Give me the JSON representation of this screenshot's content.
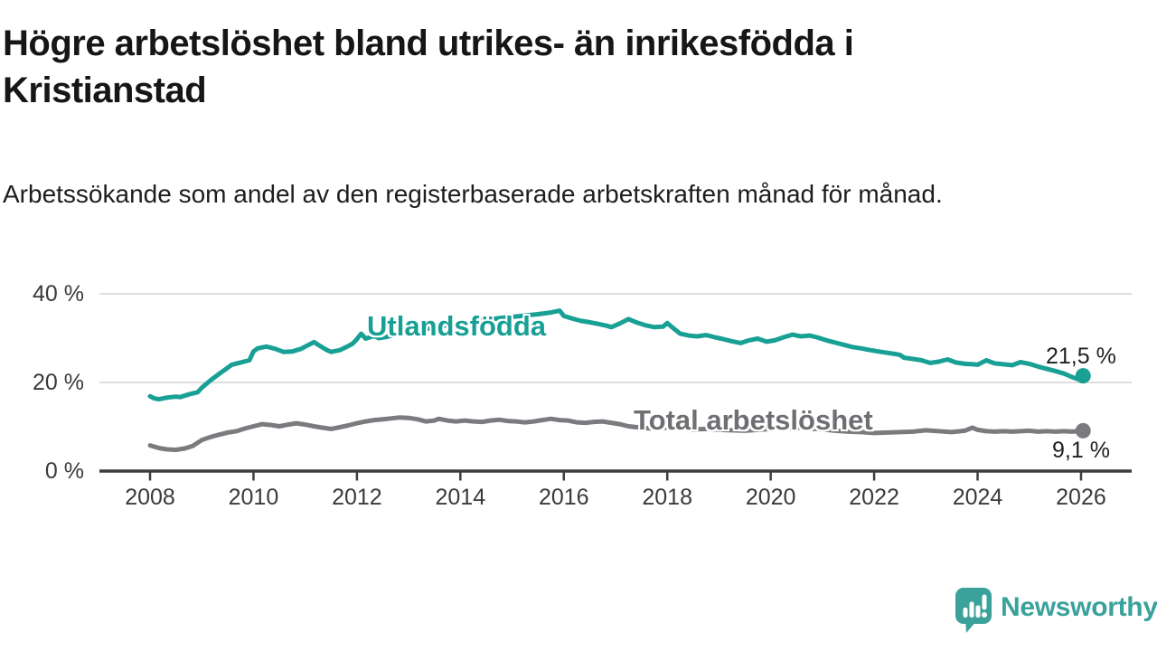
{
  "chart_data": {
    "type": "line",
    "title": "Högre arbetslöshet bland utrikes- än inrikesfödda i Kristianstad",
    "subtitle": "Arbetssökande som andel av den registerbaserade arbetskraften månad för månad.",
    "unit": "%",
    "grid": "horizontal",
    "legend_position": "inline-on-line",
    "x_axis": {
      "tick_labels": [
        "2008",
        "2010",
        "2012",
        "2014",
        "2016",
        "2018",
        "2020",
        "2022",
        "2024",
        "2026"
      ],
      "tick_years": [
        2008,
        2010,
        2012,
        2014,
        2016,
        2018,
        2020,
        2022,
        2024,
        2026
      ],
      "range": [
        2008,
        2026.3
      ]
    },
    "y_axis": {
      "tick_labels": [
        "0 %",
        "20 %",
        "40 %"
      ],
      "tick_values": [
        0,
        20,
        40
      ],
      "ylim": [
        0,
        42
      ]
    },
    "series": [
      {
        "id": "utlandsfodda",
        "name": "Utlandsfödda",
        "color": "#18a095",
        "end_label": "21,5 %",
        "end_value": 21.5,
        "points": [
          [
            2008.0,
            16.9
          ],
          [
            2008.08,
            16.4
          ],
          [
            2008.17,
            16.2
          ],
          [
            2008.33,
            16.6
          ],
          [
            2008.5,
            16.8
          ],
          [
            2008.58,
            16.7
          ],
          [
            2008.75,
            17.3
          ],
          [
            2008.92,
            17.8
          ],
          [
            2009.0,
            18.8
          ],
          [
            2009.17,
            20.5
          ],
          [
            2009.33,
            21.9
          ],
          [
            2009.5,
            23.3
          ],
          [
            2009.58,
            24.0
          ],
          [
            2009.75,
            24.5
          ],
          [
            2009.92,
            25.0
          ],
          [
            2010.0,
            27.0
          ],
          [
            2010.08,
            27.7
          ],
          [
            2010.25,
            28.1
          ],
          [
            2010.42,
            27.6
          ],
          [
            2010.58,
            26.9
          ],
          [
            2010.75,
            27.0
          ],
          [
            2010.92,
            27.6
          ],
          [
            2011.0,
            28.1
          ],
          [
            2011.17,
            29.1
          ],
          [
            2011.25,
            28.5
          ],
          [
            2011.42,
            27.3
          ],
          [
            2011.5,
            26.9
          ],
          [
            2011.67,
            27.3
          ],
          [
            2011.83,
            28.2
          ],
          [
            2011.92,
            28.8
          ],
          [
            2012.0,
            29.8
          ],
          [
            2012.08,
            31.0
          ],
          [
            2012.17,
            29.9
          ],
          [
            2012.25,
            30.2
          ],
          [
            2012.33,
            30.5
          ],
          [
            2012.42,
            30.0
          ],
          [
            2012.58,
            30.3
          ],
          [
            2012.75,
            30.8
          ],
          [
            2013.0,
            31.4
          ],
          [
            2013.25,
            31.9
          ],
          [
            2013.5,
            32.4
          ],
          [
            2013.75,
            32.9
          ],
          [
            2014.0,
            33.3
          ],
          [
            2014.25,
            33.7
          ],
          [
            2014.5,
            34.1
          ],
          [
            2014.75,
            34.5
          ],
          [
            2015.0,
            34.8
          ],
          [
            2015.25,
            35.1
          ],
          [
            2015.5,
            35.4
          ],
          [
            2015.75,
            35.8
          ],
          [
            2015.92,
            36.2
          ],
          [
            2016.0,
            35.0
          ],
          [
            2016.17,
            34.4
          ],
          [
            2016.33,
            33.9
          ],
          [
            2016.5,
            33.6
          ],
          [
            2016.67,
            33.2
          ],
          [
            2016.83,
            32.8
          ],
          [
            2016.92,
            32.5
          ],
          [
            2017.08,
            33.3
          ],
          [
            2017.25,
            34.3
          ],
          [
            2017.42,
            33.5
          ],
          [
            2017.58,
            32.9
          ],
          [
            2017.75,
            32.5
          ],
          [
            2017.92,
            32.6
          ],
          [
            2018.0,
            33.4
          ],
          [
            2018.08,
            32.6
          ],
          [
            2018.25,
            31.0
          ],
          [
            2018.42,
            30.6
          ],
          [
            2018.58,
            30.4
          ],
          [
            2018.75,
            30.7
          ],
          [
            2018.92,
            30.2
          ],
          [
            2019.08,
            29.8
          ],
          [
            2019.25,
            29.3
          ],
          [
            2019.42,
            28.9
          ],
          [
            2019.58,
            29.5
          ],
          [
            2019.75,
            29.9
          ],
          [
            2019.92,
            29.2
          ],
          [
            2020.08,
            29.5
          ],
          [
            2020.25,
            30.2
          ],
          [
            2020.42,
            30.8
          ],
          [
            2020.58,
            30.4
          ],
          [
            2020.75,
            30.6
          ],
          [
            2020.92,
            30.1
          ],
          [
            2021.08,
            29.5
          ],
          [
            2021.25,
            29.0
          ],
          [
            2021.42,
            28.5
          ],
          [
            2021.58,
            28.0
          ],
          [
            2021.75,
            27.7
          ],
          [
            2021.92,
            27.3
          ],
          [
            2022.08,
            27.0
          ],
          [
            2022.25,
            26.7
          ],
          [
            2022.42,
            26.4
          ],
          [
            2022.5,
            26.2
          ],
          [
            2022.58,
            25.6
          ],
          [
            2022.75,
            25.3
          ],
          [
            2022.92,
            25.0
          ],
          [
            2023.08,
            24.4
          ],
          [
            2023.25,
            24.7
          ],
          [
            2023.42,
            25.2
          ],
          [
            2023.58,
            24.5
          ],
          [
            2023.75,
            24.2
          ],
          [
            2023.92,
            24.1
          ],
          [
            2024.0,
            24.0
          ],
          [
            2024.17,
            25.0
          ],
          [
            2024.33,
            24.3
          ],
          [
            2024.5,
            24.1
          ],
          [
            2024.67,
            23.9
          ],
          [
            2024.83,
            24.6
          ],
          [
            2025.0,
            24.2
          ],
          [
            2025.17,
            23.6
          ],
          [
            2025.33,
            23.1
          ],
          [
            2025.5,
            22.6
          ],
          [
            2025.67,
            22.0
          ],
          [
            2025.83,
            21.2
          ],
          [
            2025.92,
            20.8
          ],
          [
            2026.04,
            21.5
          ]
        ]
      },
      {
        "id": "total-arbetsloshet",
        "name": "Total arbetslöshet",
        "color": "#7b7b7f",
        "end_label": "9,1 %",
        "end_value": 9.1,
        "points": [
          [
            2008.0,
            5.8
          ],
          [
            2008.17,
            5.2
          ],
          [
            2008.33,
            4.9
          ],
          [
            2008.5,
            4.8
          ],
          [
            2008.67,
            5.1
          ],
          [
            2008.83,
            5.7
          ],
          [
            2009.0,
            7.0
          ],
          [
            2009.17,
            7.7
          ],
          [
            2009.33,
            8.2
          ],
          [
            2009.5,
            8.7
          ],
          [
            2009.67,
            9.0
          ],
          [
            2009.83,
            9.6
          ],
          [
            2010.0,
            10.1
          ],
          [
            2010.17,
            10.6
          ],
          [
            2010.33,
            10.4
          ],
          [
            2010.5,
            10.1
          ],
          [
            2010.67,
            10.5
          ],
          [
            2010.83,
            10.8
          ],
          [
            2011.0,
            10.5
          ],
          [
            2011.17,
            10.1
          ],
          [
            2011.33,
            9.8
          ],
          [
            2011.5,
            9.5
          ],
          [
            2011.67,
            9.9
          ],
          [
            2011.83,
            10.3
          ],
          [
            2012.0,
            10.8
          ],
          [
            2012.17,
            11.2
          ],
          [
            2012.33,
            11.5
          ],
          [
            2012.5,
            11.7
          ],
          [
            2012.67,
            11.9
          ],
          [
            2012.83,
            12.1
          ],
          [
            2013.0,
            12.0
          ],
          [
            2013.17,
            11.7
          ],
          [
            2013.33,
            11.2
          ],
          [
            2013.5,
            11.4
          ],
          [
            2013.58,
            11.8
          ],
          [
            2013.75,
            11.4
          ],
          [
            2013.92,
            11.2
          ],
          [
            2014.08,
            11.4
          ],
          [
            2014.25,
            11.2
          ],
          [
            2014.42,
            11.1
          ],
          [
            2014.58,
            11.4
          ],
          [
            2014.75,
            11.6
          ],
          [
            2014.92,
            11.3
          ],
          [
            2015.08,
            11.2
          ],
          [
            2015.25,
            11.0
          ],
          [
            2015.42,
            11.2
          ],
          [
            2015.58,
            11.5
          ],
          [
            2015.75,
            11.8
          ],
          [
            2015.92,
            11.5
          ],
          [
            2016.08,
            11.4
          ],
          [
            2016.25,
            11.0
          ],
          [
            2016.42,
            10.9
          ],
          [
            2016.58,
            11.1
          ],
          [
            2016.75,
            11.2
          ],
          [
            2016.92,
            10.9
          ],
          [
            2017.08,
            10.6
          ],
          [
            2017.25,
            10.1
          ],
          [
            2017.42,
            9.9
          ],
          [
            2017.58,
            9.7
          ],
          [
            2017.75,
            9.6
          ],
          [
            2018.0,
            9.8
          ],
          [
            2018.25,
            9.6
          ],
          [
            2018.5,
            9.4
          ],
          [
            2018.75,
            9.5
          ],
          [
            2019.0,
            9.3
          ],
          [
            2019.25,
            9.2
          ],
          [
            2019.5,
            9.1
          ],
          [
            2019.75,
            9.3
          ],
          [
            2020.0,
            9.5
          ],
          [
            2020.25,
            9.7
          ],
          [
            2020.5,
            9.8
          ],
          [
            2020.75,
            9.6
          ],
          [
            2021.0,
            9.4
          ],
          [
            2021.25,
            9.1
          ],
          [
            2021.5,
            8.9
          ],
          [
            2021.75,
            8.8
          ],
          [
            2022.0,
            8.6
          ],
          [
            2022.25,
            8.7
          ],
          [
            2022.5,
            8.8
          ],
          [
            2022.75,
            8.9
          ],
          [
            2023.0,
            9.2
          ],
          [
            2023.25,
            9.0
          ],
          [
            2023.5,
            8.8
          ],
          [
            2023.75,
            9.1
          ],
          [
            2023.9,
            9.8
          ],
          [
            2024.0,
            9.3
          ],
          [
            2024.17,
            9.0
          ],
          [
            2024.33,
            8.9
          ],
          [
            2024.5,
            9.0
          ],
          [
            2024.67,
            8.9
          ],
          [
            2024.83,
            9.0
          ],
          [
            2025.0,
            9.1
          ],
          [
            2025.17,
            8.9
          ],
          [
            2025.33,
            9.0
          ],
          [
            2025.5,
            8.9
          ],
          [
            2025.67,
            9.0
          ],
          [
            2025.83,
            8.9
          ],
          [
            2026.04,
            9.1
          ]
        ]
      }
    ]
  },
  "branding": {
    "logo_text": "Newsworthy"
  },
  "colors": {
    "accent_teal": "#18a095",
    "line_gray": "#7b7b7f",
    "series_label_gray": "#6f6f73",
    "text_dark": "#161614",
    "axis": "#3d3d3d",
    "gridline": "#dedede",
    "logo_teal": "#3aa19b",
    "background": "#ffffff"
  }
}
